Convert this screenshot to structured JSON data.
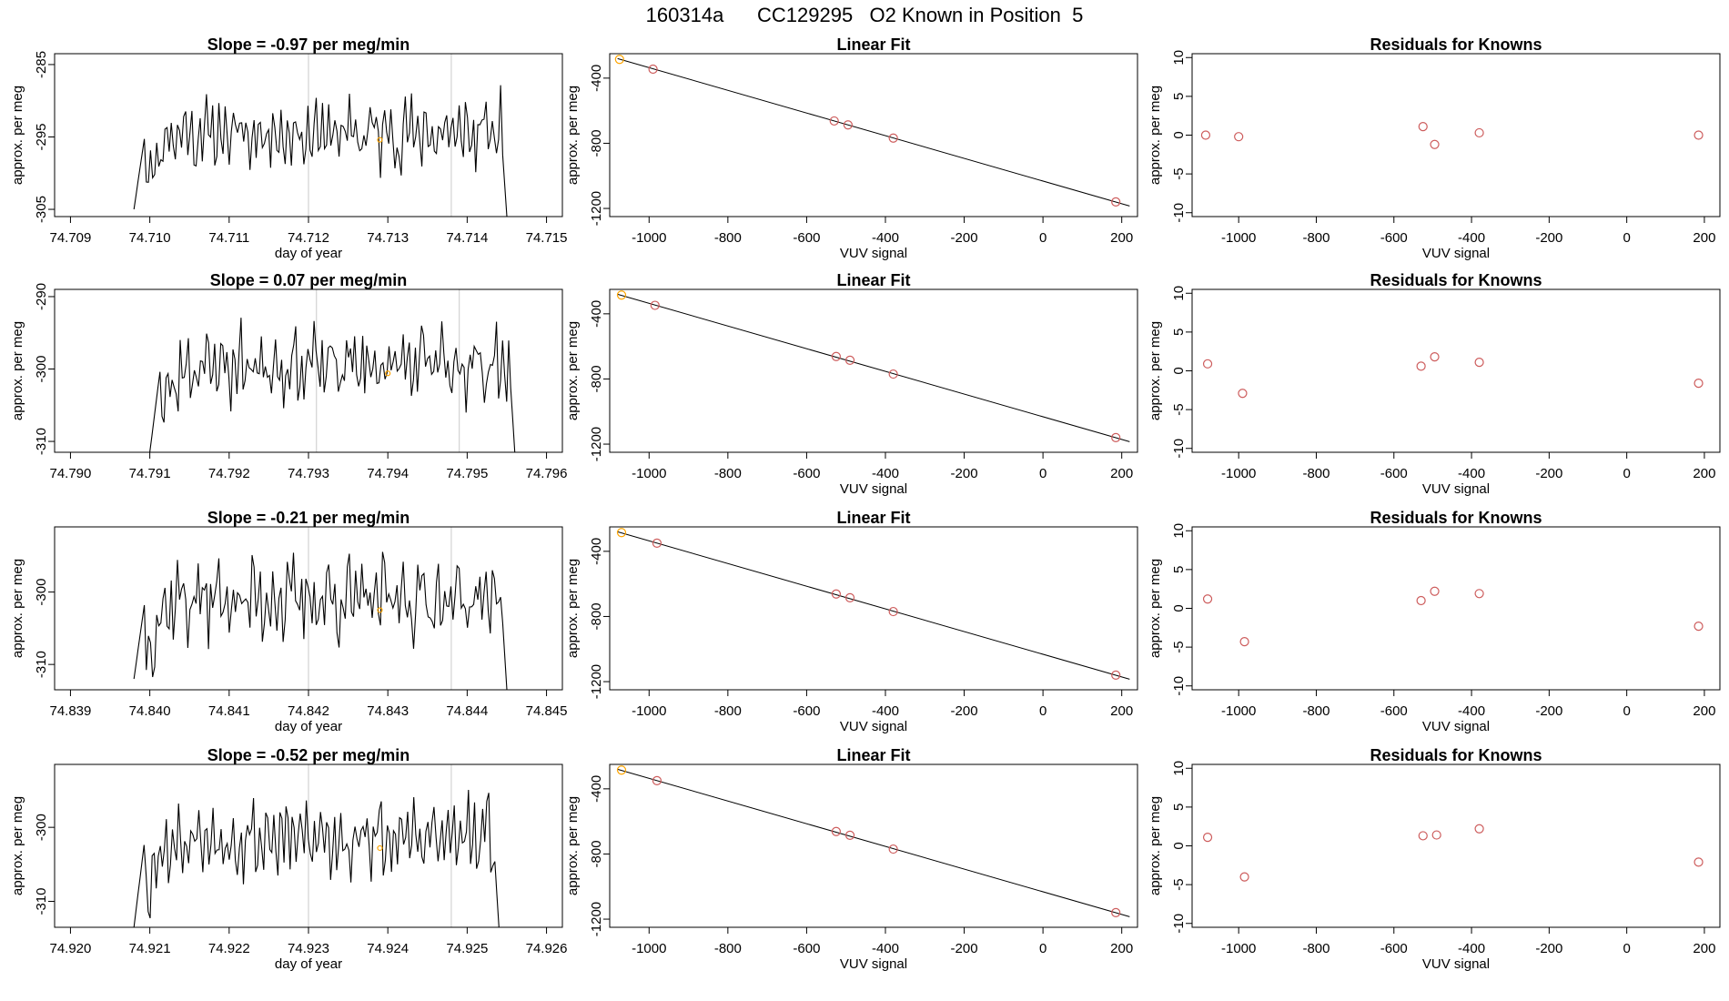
{
  "figure": {
    "title": "160314a      CC129295   O2 Known in Position  5"
  },
  "colors": {
    "line": "#000000",
    "vline": "#d3d3d3",
    "fit_point": "#cd5c5c",
    "known_point": "#ffa500"
  },
  "chart_data": [
    {
      "type": "line",
      "row": 0,
      "title": "Slope =  -0.97  per meg/min",
      "xlabel": "day of year",
      "ylabel": "approx. per meg",
      "xlim": [
        74.7088,
        74.7152
      ],
      "ylim": [
        -306,
        -283.5
      ],
      "xticks": [
        74.709,
        74.71,
        74.711,
        74.712,
        74.713,
        74.714,
        74.715
      ],
      "xtick_labels": [
        "74.709",
        "74.710",
        "74.711",
        "74.712",
        "74.713",
        "74.714",
        "74.715"
      ],
      "yticks": [
        -305,
        -295,
        -285
      ],
      "ytick_labels": [
        "-305",
        "-295",
        "-285"
      ],
      "vlines": [
        74.712,
        74.7138
      ],
      "start": 74.7098,
      "end": 74.7145,
      "start_val": -305,
      "end_val": -306,
      "mean": -294.5,
      "amp": 4.5,
      "seed": 11,
      "marker": {
        "x": 74.7129,
        "y": -295.4
      }
    },
    {
      "type": "line",
      "row": 1,
      "title": "Slope =  0.07  per meg/min",
      "xlabel": "",
      "ylabel": "approx. per meg",
      "xlim": [
        74.7898,
        74.7962
      ],
      "ylim": [
        -311.5,
        -289
      ],
      "xticks": [
        74.79,
        74.791,
        74.792,
        74.793,
        74.794,
        74.795,
        74.796
      ],
      "xtick_labels": [
        "74.790",
        "74.791",
        "74.792",
        "74.793",
        "74.794",
        "74.795",
        "74.796"
      ],
      "yticks": [
        -310,
        -300,
        -290
      ],
      "ytick_labels": [
        "-310",
        "-300",
        "-290"
      ],
      "vlines": [
        74.7931,
        74.7949
      ],
      "start": 74.791,
      "end": 74.7956,
      "start_val": -311.5,
      "end_val": -311.5,
      "mean": -299.5,
      "amp": 4.8,
      "seed": 23,
      "marker": {
        "x": 74.794,
        "y": -300.6
      }
    },
    {
      "type": "line",
      "row": 2,
      "title": "Slope =  -0.21  per meg/min",
      "xlabel": "day of year",
      "ylabel": "approx. per meg",
      "xlim": [
        74.8388,
        74.8452
      ],
      "ylim": [
        -313.5,
        -291
      ],
      "xticks": [
        74.839,
        74.84,
        74.841,
        74.842,
        74.843,
        74.844,
        74.845
      ],
      "xtick_labels": [
        "74.839",
        "74.840",
        "74.841",
        "74.842",
        "74.843",
        "74.844",
        "74.845"
      ],
      "yticks": [
        -310,
        -300
      ],
      "ytick_labels": [
        "-310",
        "-300"
      ],
      "vlines": [
        74.842,
        74.8438
      ],
      "start": 74.8398,
      "end": 74.8445,
      "start_val": -312,
      "end_val": -313.5,
      "mean": -301,
      "amp": 5,
      "seed": 37,
      "marker": {
        "x": 74.8429,
        "y": -302.5
      }
    },
    {
      "type": "line",
      "row": 3,
      "title": "Slope =  -0.52  per meg/min",
      "xlabel": "day of year",
      "ylabel": "approx. per meg",
      "xlim": [
        74.9198,
        74.9262
      ],
      "ylim": [
        -313.5,
        -291.5
      ],
      "xticks": [
        74.92,
        74.921,
        74.922,
        74.923,
        74.924,
        74.925,
        74.926
      ],
      "xtick_labels": [
        "74.920",
        "74.921",
        "74.922",
        "74.923",
        "74.924",
        "74.925",
        "74.926"
      ],
      "yticks": [
        -310,
        -300
      ],
      "ytick_labels": [
        "-310",
        "-300"
      ],
      "vlines": [
        74.923,
        74.9248
      ],
      "start": 74.9208,
      "end": 74.9254,
      "start_val": -313.5,
      "end_val": -313.5,
      "mean": -301.5,
      "amp": 4.8,
      "seed": 53,
      "marker": {
        "x": 74.9239,
        "y": -302.8
      }
    },
    {
      "type": "scatter",
      "row": 0,
      "title": "Linear Fit",
      "xlabel": "VUV signal",
      "ylabel": "approx. per meg",
      "xlim": [
        -1100,
        240
      ],
      "ylim": [
        -1250,
        -250
      ],
      "xticks": [
        -1000,
        -800,
        -600,
        -400,
        -200,
        0,
        200
      ],
      "xtick_labels": [
        "-1000",
        "-800",
        "-600",
        "-400",
        "-200",
        "0",
        "200"
      ],
      "yticks": [
        -1200,
        -800,
        -400
      ],
      "ytick_labels": [
        "-1200",
        "-800",
        "-400"
      ],
      "line": {
        "x": [
          -1080,
          220
        ],
        "y": [
          -280,
          -1185
        ]
      },
      "points": {
        "x": [
          -1075,
          -990,
          -530,
          -495,
          -380,
          185
        ],
        "y": [
          -285,
          -345,
          -663,
          -687,
          -768,
          -1160
        ]
      },
      "highlight": 0
    },
    {
      "type": "scatter",
      "row": 1,
      "title": "Linear Fit",
      "xlabel": "VUV signal",
      "ylabel": "approx. per meg",
      "xlim": [
        -1100,
        240
      ],
      "ylim": [
        -1250,
        -250
      ],
      "xticks": [
        -1000,
        -800,
        -600,
        -400,
        -200,
        0,
        200
      ],
      "xtick_labels": [
        "-1000",
        "-800",
        "-600",
        "-400",
        "-200",
        "0",
        "200"
      ],
      "yticks": [
        -1200,
        -800,
        -400
      ],
      "ytick_labels": [
        "-1200",
        "-800",
        "-400"
      ],
      "line": {
        "x": [
          -1080,
          220
        ],
        "y": [
          -280,
          -1185
        ]
      },
      "points": {
        "x": [
          -1070,
          -985,
          -525,
          -490,
          -380,
          185
        ],
        "y": [
          -285,
          -348,
          -662,
          -685,
          -770,
          -1160
        ]
      },
      "highlight": 0
    },
    {
      "type": "scatter",
      "row": 2,
      "title": "Linear Fit",
      "xlabel": "VUV signal",
      "ylabel": "approx. per meg",
      "xlim": [
        -1100,
        240
      ],
      "ylim": [
        -1250,
        -250
      ],
      "xticks": [
        -1000,
        -800,
        -600,
        -400,
        -200,
        0,
        200
      ],
      "xtick_labels": [
        "-1000",
        "-800",
        "-600",
        "-400",
        "-200",
        "0",
        "200"
      ],
      "yticks": [
        -1200,
        -800,
        -400
      ],
      "ytick_labels": [
        "-1200",
        "-800",
        "-400"
      ],
      "line": {
        "x": [
          -1080,
          220
        ],
        "y": [
          -280,
          -1185
        ]
      },
      "points": {
        "x": [
          -1070,
          -980,
          -525,
          -490,
          -380,
          185
        ],
        "y": [
          -285,
          -350,
          -662,
          -685,
          -770,
          -1160
        ]
      },
      "highlight": 0
    },
    {
      "type": "scatter",
      "row": 3,
      "title": "Linear Fit",
      "xlabel": "VUV signal",
      "ylabel": "approx. per meg",
      "xlim": [
        -1100,
        240
      ],
      "ylim": [
        -1250,
        -250
      ],
      "xticks": [
        -1000,
        -800,
        -600,
        -400,
        -200,
        0,
        200
      ],
      "xtick_labels": [
        "-1000",
        "-800",
        "-600",
        "-400",
        "-200",
        "0",
        "200"
      ],
      "yticks": [
        -1200,
        -800,
        -400
      ],
      "ytick_labels": [
        "-1200",
        "-800",
        "-400"
      ],
      "line": {
        "x": [
          -1080,
          220
        ],
        "y": [
          -280,
          -1185
        ]
      },
      "points": {
        "x": [
          -1070,
          -980,
          -525,
          -490,
          -380,
          185
        ],
        "y": [
          -285,
          -350,
          -662,
          -685,
          -770,
          -1160
        ]
      },
      "highlight": 0
    },
    {
      "type": "scatter",
      "row": 0,
      "title": "Residuals for Knowns",
      "xlabel": "VUV signal",
      "ylabel": "approx. per meg",
      "xlim": [
        -1120,
        240
      ],
      "ylim": [
        -10.5,
        10.5
      ],
      "xticks": [
        -1000,
        -800,
        -600,
        -400,
        -200,
        0,
        200
      ],
      "xtick_labels": [
        "-1000",
        "-800",
        "-600",
        "-400",
        "-200",
        "0",
        "200"
      ],
      "yticks": [
        -10,
        -5,
        0,
        5,
        10
      ],
      "ytick_labels": [
        "-10",
        "-5",
        "0",
        "5",
        "10"
      ],
      "points": {
        "x": [
          -1085,
          -1000,
          -525,
          -495,
          -380,
          185
        ],
        "y": [
          0,
          -0.2,
          1.1,
          -1.2,
          0.3,
          0
        ]
      }
    },
    {
      "type": "scatter",
      "row": 1,
      "title": "Residuals for Knowns",
      "xlabel": "VUV signal",
      "ylabel": "approx. per meg",
      "xlim": [
        -1120,
        240
      ],
      "ylim": [
        -10.5,
        10.5
      ],
      "xticks": [
        -1000,
        -800,
        -600,
        -400,
        -200,
        0,
        200
      ],
      "xtick_labels": [
        "-1000",
        "-800",
        "-600",
        "-400",
        "-200",
        "0",
        "200"
      ],
      "yticks": [
        -10,
        -5,
        0,
        5,
        10
      ],
      "ytick_labels": [
        "-10",
        "-5",
        "0",
        "5",
        "10"
      ],
      "points": {
        "x": [
          -1080,
          -990,
          -530,
          -495,
          -380,
          185
        ],
        "y": [
          0.9,
          -2.9,
          0.6,
          1.8,
          1.1,
          -1.6
        ]
      }
    },
    {
      "type": "scatter",
      "row": 2,
      "title": "Residuals for Knowns",
      "xlabel": "VUV signal",
      "ylabel": "approx. per meg",
      "xlim": [
        -1120,
        240
      ],
      "ylim": [
        -10.5,
        10.5
      ],
      "xticks": [
        -1000,
        -800,
        -600,
        -400,
        -200,
        0,
        200
      ],
      "xtick_labels": [
        "-1000",
        "-800",
        "-600",
        "-400",
        "-200",
        "0",
        "200"
      ],
      "yticks": [
        -10,
        -5,
        0,
        5,
        10
      ],
      "ytick_labels": [
        "-10",
        "-5",
        "0",
        "5",
        "10"
      ],
      "points": {
        "x": [
          -1080,
          -985,
          -530,
          -495,
          -380,
          185
        ],
        "y": [
          1.2,
          -4.3,
          1.0,
          2.2,
          1.9,
          -2.3
        ]
      }
    },
    {
      "type": "scatter",
      "row": 3,
      "title": "Residuals for Knowns",
      "xlabel": "VUV signal",
      "ylabel": "approx. per meg",
      "xlim": [
        -1120,
        240
      ],
      "ylim": [
        -10.5,
        10.5
      ],
      "xticks": [
        -1000,
        -800,
        -600,
        -400,
        -200,
        0,
        200
      ],
      "xtick_labels": [
        "-1000",
        "-800",
        "-600",
        "-400",
        "-200",
        "0",
        "200"
      ],
      "yticks": [
        -10,
        -5,
        0,
        5,
        10
      ],
      "ytick_labels": [
        "-10",
        "-5",
        "0",
        "5",
        "10"
      ],
      "points": {
        "x": [
          -1080,
          -985,
          -525,
          -490,
          -380,
          185
        ],
        "y": [
          1.1,
          -4.0,
          1.3,
          1.4,
          2.2,
          -2.1
        ]
      }
    }
  ]
}
